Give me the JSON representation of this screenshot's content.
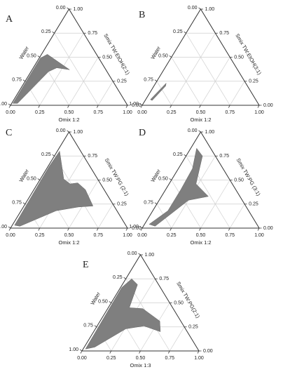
{
  "chart_data": [
    {
      "type": "ternary",
      "label": "A",
      "left_title": "Water",
      "right_title": "Smix TW:EtOH(2:1)",
      "bottom_title": "Omix 1:2",
      "color": "#7f7f7f",
      "water_ticks": [
        {
          "value": 0,
          "label": "0.00"
        },
        {
          "value": 0.25,
          "label": "0.25"
        },
        {
          "value": 0.5,
          "label": "0.50"
        },
        {
          "value": 0.75,
          "label": "0.75"
        },
        {
          "value": 1,
          "label": "1.00"
        }
      ],
      "smix_ticks": [
        {
          "value": 0,
          "label": "0.00"
        },
        {
          "value": 0.25,
          "label": "0.25"
        },
        {
          "value": 0.5,
          "label": "0.50"
        },
        {
          "value": 0.75,
          "label": "0.75"
        },
        {
          "value": 1,
          "label": "1.00"
        }
      ],
      "oil_ticks": [
        {
          "value": 0,
          "label": "0.00"
        },
        {
          "value": 0.25,
          "label": "0.25"
        },
        {
          "value": 0.5,
          "label": "0.50"
        },
        {
          "value": 0.75,
          "label": "0.75"
        },
        {
          "value": 1,
          "label": "1.00"
        }
      ],
      "region": {
        "smix": [
          0.02,
          0.49,
          0.53,
          0.37,
          0.39,
          0.35,
          0.02
        ],
        "oil": [
          0.01,
          0.01,
          0.05,
          0.32,
          0.2,
          0.15,
          0.05
        ]
      }
    },
    {
      "type": "ternary",
      "label": "B",
      "left_title": "Water",
      "right_title": "Smix TW:EtOH(3:1)",
      "bottom_title": "Omix 1:2",
      "color": "#7f7f7f",
      "water_ticks": [
        {
          "value": 0,
          "label": "0.00"
        },
        {
          "value": 0.25,
          "label": "0.25"
        },
        {
          "value": 0.5,
          "label": "0.50"
        },
        {
          "value": 0.75,
          "label": "0.75"
        },
        {
          "value": 1,
          "label": "1.00"
        }
      ],
      "smix_ticks": [
        {
          "value": 0,
          "label": "0.00"
        },
        {
          "value": 0.25,
          "label": "0.25"
        },
        {
          "value": 0.5,
          "label": "0.50"
        },
        {
          "value": 0.75,
          "label": "0.75"
        },
        {
          "value": 1,
          "label": "1.00"
        }
      ],
      "oil_ticks": [
        {
          "value": 0,
          "label": "0.00"
        },
        {
          "value": 0.25,
          "label": "0.25"
        },
        {
          "value": 0.5,
          "label": "0.50"
        },
        {
          "value": 0.75,
          "label": "0.75"
        },
        {
          "value": 1,
          "label": "1.00"
        }
      ],
      "region": {
        "smix": [
          0.06,
          0.23,
          0.2,
          0.05
        ],
        "oil": [
          0.04,
          0.09,
          0.1,
          0.06
        ]
      }
    },
    {
      "type": "ternary",
      "label": "C",
      "left_title": "Water",
      "right_title": "Smix TW:PG (2:1)",
      "bottom_title": "Omix 1:2",
      "color": "#7f7f7f",
      "water_ticks": [
        {
          "value": 0,
          "label": "0.00"
        },
        {
          "value": 0.25,
          "label": "0.25"
        },
        {
          "value": 0.5,
          "label": "0.50"
        },
        {
          "value": 0.75,
          "label": "0.75"
        },
        {
          "value": 1,
          "label": "1.00"
        }
      ],
      "smix_ticks": [
        {
          "value": 0,
          "label": "0.00"
        },
        {
          "value": 0.25,
          "label": "0.25"
        },
        {
          "value": 0.5,
          "label": "0.50"
        },
        {
          "value": 0.75,
          "label": "0.75"
        },
        {
          "value": 1,
          "label": "1.00"
        }
      ],
      "oil_ticks": [
        {
          "value": 0,
          "label": "0.00"
        },
        {
          "value": 0.25,
          "label": "0.25"
        },
        {
          "value": 0.5,
          "label": "0.50"
        },
        {
          "value": 0.75,
          "label": "0.75"
        },
        {
          "value": 1,
          "label": "1.00"
        }
      ],
      "region": {
        "smix": [
          0.03,
          0.64,
          0.8,
          0.51,
          0.46,
          0.47,
          0.4,
          0.23,
          0.22,
          0.18,
          0.02
        ],
        "oil": [
          0.02,
          0.01,
          0.02,
          0.2,
          0.28,
          0.34,
          0.44,
          0.59,
          0.47,
          0.3,
          0.07
        ]
      }
    },
    {
      "type": "ternary",
      "label": "D",
      "left_title": "Water",
      "right_title": "Smix TW:PG (3:1)",
      "bottom_title": "Omix 1:2",
      "color": "#7f7f7f",
      "water_ticks": [
        {
          "value": 0,
          "label": "0.00"
        },
        {
          "value": 0.25,
          "label": "0.25"
        },
        {
          "value": 0.5,
          "label": "0.50"
        },
        {
          "value": 0.75,
          "label": "0.75"
        },
        {
          "value": 1,
          "label": "1.00"
        }
      ],
      "smix_ticks": [
        {
          "value": 0,
          "label": "0.00"
        },
        {
          "value": 0.25,
          "label": "0.25"
        },
        {
          "value": 0.5,
          "label": "0.50"
        },
        {
          "value": 0.75,
          "label": "0.75"
        },
        {
          "value": 1,
          "label": "1.00"
        }
      ],
      "oil_ticks": [
        {
          "value": 0,
          "label": "0.00"
        },
        {
          "value": 0.25,
          "label": "0.25"
        },
        {
          "value": 0.5,
          "label": "0.50"
        },
        {
          "value": 0.75,
          "label": "0.75"
        },
        {
          "value": 1,
          "label": "1.00"
        }
      ],
      "region": {
        "smix": [
          0.04,
          0.18,
          0.4,
          0.62,
          0.83,
          0.75,
          0.46,
          0.33,
          0.29,
          0.18,
          0.02
        ],
        "oil": [
          0.04,
          0.13,
          0.13,
          0.12,
          0.05,
          0.14,
          0.23,
          0.4,
          0.25,
          0.19,
          0.1
        ]
      }
    },
    {
      "type": "ternary",
      "label": "E",
      "left_title": "Water",
      "right_title": "Smix TW:PG(2:1)",
      "bottom_title": "Omix 1:3",
      "color": "#7f7f7f",
      "water_ticks": [
        {
          "value": 0,
          "label": "0.00"
        },
        {
          "value": 0.25,
          "label": "0.25"
        },
        {
          "value": 0.5,
          "label": "0.50"
        },
        {
          "value": 0.75,
          "label": "0.75"
        },
        {
          "value": 1,
          "label": "1.00"
        }
      ],
      "smix_ticks": [
        {
          "value": 0,
          "label": "0.00"
        },
        {
          "value": 0.25,
          "label": "0.25"
        },
        {
          "value": 0.5,
          "label": "0.50"
        },
        {
          "value": 0.75,
          "label": "0.75"
        },
        {
          "value": 1,
          "label": "1.00"
        }
      ],
      "oil_ticks": [
        {
          "value": 0,
          "label": "0.00"
        },
        {
          "value": 0.25,
          "label": "0.25"
        },
        {
          "value": 0.5,
          "label": "0.50"
        },
        {
          "value": 0.75,
          "label": "0.75"
        },
        {
          "value": 1,
          "label": "1.00"
        }
      ],
      "region": {
        "smix": [
          0.02,
          0.66,
          0.75,
          0.69,
          0.45,
          0.44,
          0.31,
          0.2,
          0.26,
          0.23,
          0.04
        ],
        "oil": [
          0.02,
          0.01,
          0.05,
          0.13,
          0.18,
          0.3,
          0.51,
          0.57,
          0.4,
          0.26,
          0.09
        ]
      }
    }
  ]
}
